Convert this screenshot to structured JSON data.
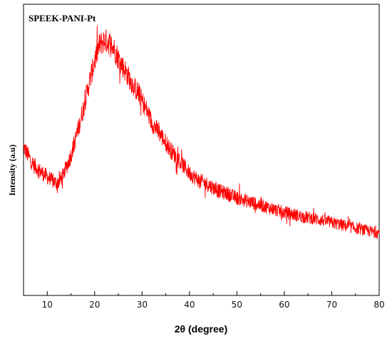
{
  "chart_data": {
    "type": "line",
    "title": "SPEEK-PANI-Pt",
    "xlabel": "2θ (degree)",
    "ylabel": "Intensity (a.u)",
    "xlim": [
      5,
      80
    ],
    "ylim": [
      0,
      100
    ],
    "x_ticks": [
      10,
      20,
      30,
      40,
      50,
      60,
      70,
      80
    ],
    "y_ticks_shown": false,
    "grid": false,
    "legend": "none",
    "series": [
      {
        "color": "#ff0000",
        "x": [
          5,
          7,
          9,
          11,
          12,
          13,
          14,
          15,
          16,
          17,
          18,
          19,
          20,
          21,
          22,
          23,
          24,
          25,
          26,
          27,
          28,
          29,
          30,
          31,
          32,
          34,
          36,
          38,
          40,
          42,
          44,
          46,
          48,
          50,
          52,
          54,
          56,
          58,
          60,
          62,
          64,
          66,
          68,
          70,
          72,
          74,
          76,
          78,
          80
        ],
        "y": [
          51,
          45,
          42,
          39.5,
          38.5,
          40,
          44,
          48,
          54,
          60,
          67,
          74,
          80.5,
          86,
          87.5,
          87,
          85,
          81.5,
          78.5,
          75.5,
          72.5,
          70,
          67,
          63.5,
          59.5,
          55,
          50,
          46,
          42,
          39.5,
          38,
          36,
          35,
          33.5,
          32.5,
          31.5,
          30.5,
          29.5,
          28.5,
          27.8,
          27,
          26.5,
          25.8,
          25,
          24.3,
          23.5,
          22.8,
          22,
          21.5
        ]
      }
    ]
  }
}
